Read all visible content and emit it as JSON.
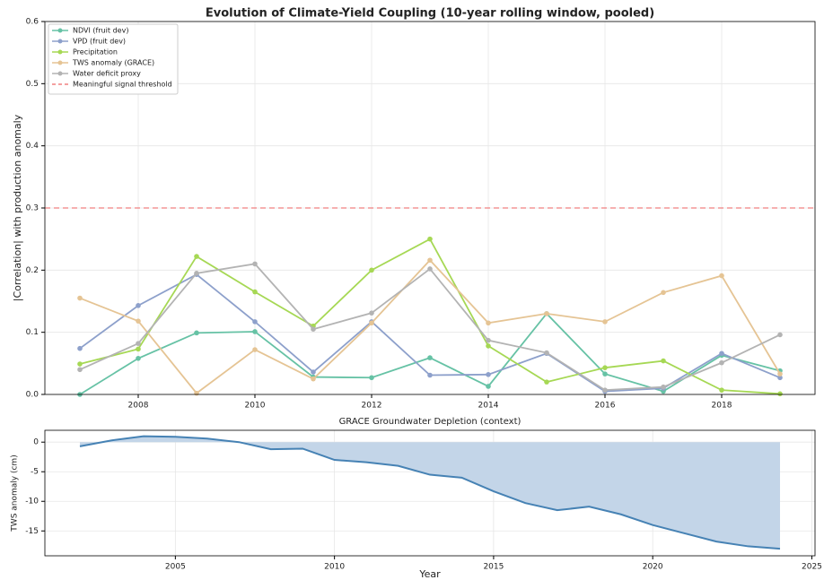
{
  "chart_data": [
    {
      "type": "line",
      "title": "Evolution of Climate-Yield Coupling (10-year rolling window, pooled)",
      "y_label": "|Correlation| with production anomaly",
      "x": [
        2007,
        2008,
        2009,
        2010,
        2011,
        2012,
        2013,
        2014,
        2015,
        2016,
        2017,
        2018,
        2019
      ],
      "series": [
        {
          "name": "NDVI (fruit dev)",
          "color": "#66c2a5",
          "values": [
            0.0,
            0.058,
            0.099,
            0.101,
            0.028,
            0.027,
            0.059,
            0.013,
            0.13,
            0.033,
            0.005,
            0.063,
            0.038
          ]
        },
        {
          "name": "VPD (fruit dev)",
          "color": "#8da0cb",
          "values": [
            0.074,
            0.143,
            0.193,
            0.117,
            0.036,
            0.117,
            0.031,
            0.032,
            0.066,
            0.005,
            0.01,
            0.066,
            0.027
          ]
        },
        {
          "name": "Precipitation",
          "color": "#a6d854",
          "values": [
            0.049,
            0.073,
            0.222,
            0.165,
            0.11,
            0.2,
            0.25,
            0.078,
            0.02,
            0.043,
            0.054,
            0.007,
            0.001
          ]
        },
        {
          "name": "TWS anomaly (GRACE)",
          "color": "#e5c494",
          "values": [
            0.155,
            0.118,
            0.002,
            0.072,
            0.025,
            0.115,
            0.216,
            0.115,
            0.13,
            0.117,
            0.164,
            0.191,
            0.033
          ]
        },
        {
          "name": "Water deficit proxy",
          "color": "#b3b3b3",
          "values": [
            0.04,
            0.082,
            0.195,
            0.21,
            0.105,
            0.131,
            0.202,
            0.087,
            0.067,
            0.007,
            0.012,
            0.051,
            0.096
          ]
        }
      ],
      "threshold": {
        "value": 0.3,
        "label": "Meaningful signal threshold",
        "color": "#f08080"
      },
      "xlim": [
        2006.4,
        2019.6
      ],
      "xticks": [
        2008,
        2010,
        2012,
        2014,
        2016,
        2018
      ],
      "ylim": [
        0,
        0.6
      ],
      "yticks": [
        {
          "value": 0,
          "label": "0.0"
        },
        0.1,
        0.2,
        0.3,
        0.4,
        0.5,
        0.6
      ],
      "grid": true,
      "legend": "upper-left"
    },
    {
      "type": "area",
      "title": "GRACE Groundwater Depletion (context)",
      "x_label": "Year",
      "y_label": "TWS anomaly (cm)",
      "x": [
        2002,
        2003,
        2004,
        2005,
        2006,
        2007,
        2008,
        2009,
        2010,
        2011,
        2012,
        2013,
        2014,
        2015,
        2016,
        2017,
        2018,
        2019,
        2020,
        2021,
        2022,
        2023,
        2024
      ],
      "values": [
        -0.7,
        0.3,
        1.0,
        0.9,
        0.6,
        0.0,
        -1.2,
        -1.1,
        -3.0,
        -3.4,
        -4.0,
        -5.5,
        -6.0,
        -8.3,
        -10.3,
        -11.5,
        -10.9,
        -12.2,
        -14.0,
        -15.4,
        -16.8,
        -17.6,
        -18.0
      ],
      "color": "#4682b4",
      "fill_color": "#c3d5e8",
      "xlim": [
        2000.9,
        2025.1
      ],
      "xticks": [
        2005,
        2010,
        2015,
        2020,
        2025
      ],
      "ylim": [
        -19.2,
        2
      ],
      "yticks": [
        0,
        -5,
        -10,
        -15
      ],
      "grid": true
    }
  ]
}
